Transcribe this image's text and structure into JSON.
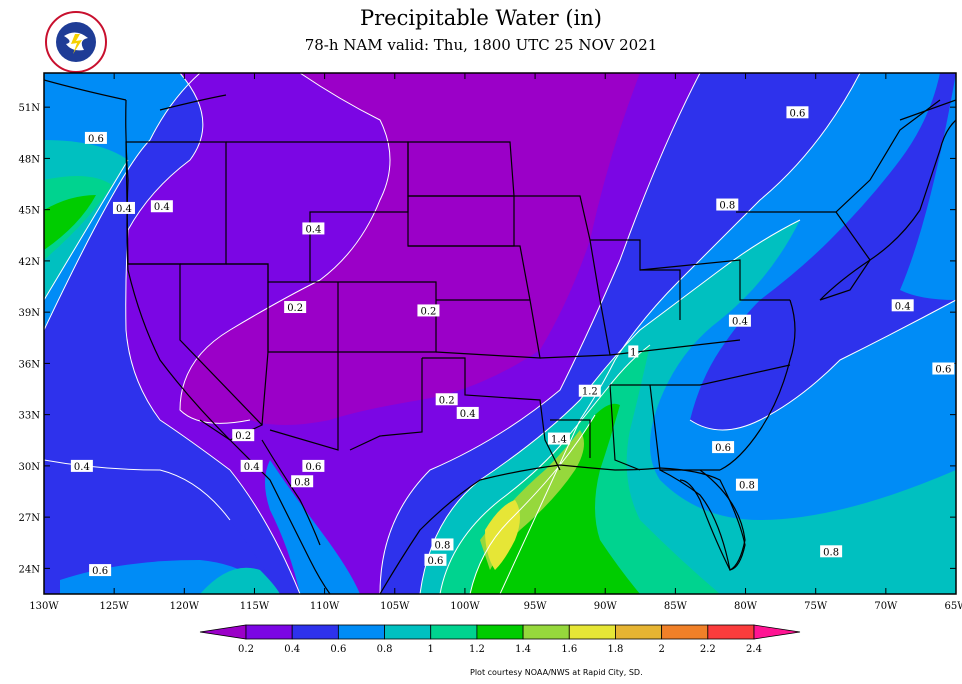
{
  "header": {
    "title": "Precipitable Water (in)",
    "subtitle": "78-h NAM valid: Thu, 1800 UTC 25 NOV 2021"
  },
  "logo": {
    "name": "national-weather-service-logo",
    "text": "NATIONAL WEATHER SERVICE"
  },
  "credit": "Plot courtesy NOAA/NWS at Rapid City, SD.",
  "map_data": {
    "type": "filled-contour-map",
    "lon_range": [
      -130,
      -65
    ],
    "lat_range": [
      22.5,
      53
    ],
    "lat_ticks": [
      {
        "value": 51,
        "label": "51N"
      },
      {
        "value": 48,
        "label": "48N"
      },
      {
        "value": 45,
        "label": "45N"
      },
      {
        "value": 42,
        "label": "42N"
      },
      {
        "value": 39,
        "label": "39N"
      },
      {
        "value": 36,
        "label": "36N"
      },
      {
        "value": 33,
        "label": "33N"
      },
      {
        "value": 30,
        "label": "30N"
      },
      {
        "value": 27,
        "label": "27N"
      },
      {
        "value": 24,
        "label": "24N"
      }
    ],
    "lon_ticks": [
      {
        "value": -130,
        "label": "130W"
      },
      {
        "value": -125,
        "label": "125W"
      },
      {
        "value": -120,
        "label": "120W"
      },
      {
        "value": -115,
        "label": "115W"
      },
      {
        "value": -110,
        "label": "110W"
      },
      {
        "value": -105,
        "label": "105W"
      },
      {
        "value": -100,
        "label": "100W"
      },
      {
        "value": -95,
        "label": "95W"
      },
      {
        "value": -90,
        "label": "90W"
      },
      {
        "value": -85,
        "label": "85W"
      },
      {
        "value": -80,
        "label": "80W"
      },
      {
        "value": -75,
        "label": "75W"
      },
      {
        "value": -70,
        "label": "70W"
      },
      {
        "value": -65,
        "label": "65W"
      }
    ],
    "contour_labels": [
      {
        "text": "0.6",
        "lon": -126.3,
        "lat": 49.2
      },
      {
        "text": "0.4",
        "lon": -124.3,
        "lat": 45.1
      },
      {
        "text": "0.4",
        "lon": -121.6,
        "lat": 45.2
      },
      {
        "text": "0.4",
        "lon": -110.8,
        "lat": 43.9
      },
      {
        "text": "0.2",
        "lon": -112.1,
        "lat": 39.3
      },
      {
        "text": "0.2",
        "lon": -102.6,
        "lat": 39.1
      },
      {
        "text": "0.2",
        "lon": -101.3,
        "lat": 33.9
      },
      {
        "text": "0.4",
        "lon": -99.8,
        "lat": 33.1
      },
      {
        "text": "0.2",
        "lon": -115.8,
        "lat": 31.8
      },
      {
        "text": "0.4",
        "lon": -115.2,
        "lat": 30.0
      },
      {
        "text": "0.6",
        "lon": -110.8,
        "lat": 30.0
      },
      {
        "text": "0.8",
        "lon": -111.6,
        "lat": 29.1
      },
      {
        "text": "0.4",
        "lon": -127.3,
        "lat": 30.0
      },
      {
        "text": "0.6",
        "lon": -126.0,
        "lat": 23.9
      },
      {
        "text": "0.8",
        "lon": -101.6,
        "lat": 25.4
      },
      {
        "text": "0.6",
        "lon": -102.1,
        "lat": 24.5
      },
      {
        "text": "1.4",
        "lon": -93.3,
        "lat": 31.6
      },
      {
        "text": "1.2",
        "lon": -91.1,
        "lat": 34.4
      },
      {
        "text": "1",
        "lon": -88.0,
        "lat": 36.7
      },
      {
        "text": "0.6",
        "lon": -81.6,
        "lat": 31.1
      },
      {
        "text": "0.8",
        "lon": -79.9,
        "lat": 28.9
      },
      {
        "text": "0.8",
        "lon": -73.9,
        "lat": 25.0
      },
      {
        "text": "0.4",
        "lon": -80.4,
        "lat": 38.5
      },
      {
        "text": "0.8",
        "lon": -81.3,
        "lat": 45.3
      },
      {
        "text": "0.6",
        "lon": -76.3,
        "lat": 50.7
      },
      {
        "text": "0.4",
        "lon": -68.8,
        "lat": 39.4
      },
      {
        "text": "0.6",
        "lon": -65.9,
        "lat": 35.7
      }
    ]
  },
  "colorbar": {
    "levels": [
      "0.2",
      "0.4",
      "0.6",
      "0.8",
      "1",
      "1.2",
      "1.4",
      "1.6",
      "1.8",
      "2",
      "2.2",
      "2.4"
    ],
    "colors": [
      "#9b00c8",
      "#7b06e4",
      "#2e32ec",
      "#008cf6",
      "#00c0c0",
      "#00d38f",
      "#00cc00",
      "#96d83c",
      "#e6e636",
      "#e6b432",
      "#f08028",
      "#fa3c3c",
      "#ff1493"
    ]
  }
}
